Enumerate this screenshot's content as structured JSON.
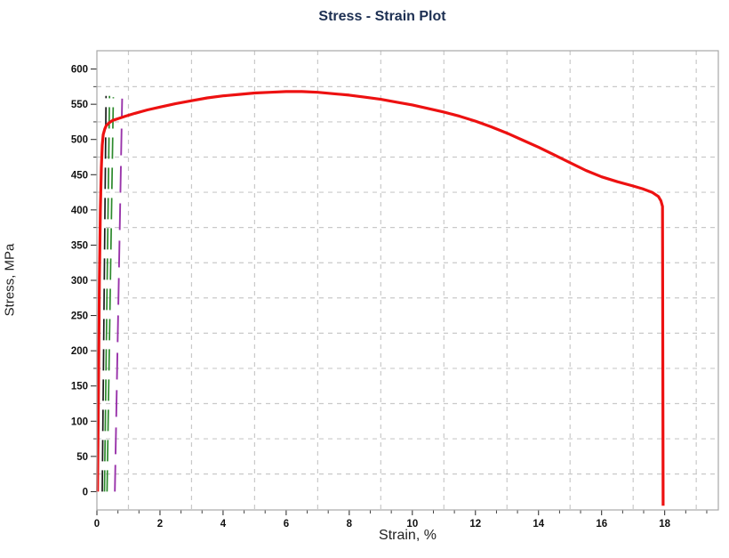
{
  "title": "Stress - Strain Plot",
  "chart_data": {
    "type": "line",
    "title": "Stress - Strain Plot",
    "xlabel": "Strain, %",
    "ylabel": "Stress, MPa",
    "xlim": [
      0,
      19.7
    ],
    "ylim": [
      -26,
      626
    ],
    "legend": "none",
    "grid_style": "dashed gridlines midway between labeled ticks",
    "x_ticks_major": [
      0,
      2,
      4,
      6,
      8,
      10,
      12,
      14,
      16,
      18
    ],
    "x_ticks_minor": [
      0.667,
      1.333,
      2.667,
      3.333,
      4.667,
      5.333,
      6.667,
      7.333,
      8.667,
      9.333,
      10.667,
      11.333,
      12.667,
      13.333,
      14.667,
      15.333,
      16.667,
      17.333,
      18.667,
      19.333
    ],
    "y_ticks_major": [
      0,
      50,
      100,
      150,
      200,
      250,
      300,
      350,
      400,
      450,
      500,
      550,
      600
    ],
    "y_ticks_minor": [
      25,
      75,
      125,
      175,
      225,
      275,
      325,
      375,
      425,
      475,
      525,
      575
    ],
    "x_gridlines": [
      1,
      3,
      5,
      7,
      9,
      11,
      13,
      15,
      17,
      19
    ],
    "y_gridlines": [
      25,
      75,
      125,
      175,
      225,
      275,
      325,
      375,
      425,
      475,
      525,
      575
    ],
    "colors": {
      "curve": "#ed1111",
      "modulus_line": "#1a1a1a",
      "offset_green": "#2c8a2c",
      "offset_purple": "#9933aa",
      "grid": "#c9c9c9",
      "border": "#a8a8a8",
      "title_text": "#1c2f52",
      "tick_text": "#111111"
    },
    "series": [
      {
        "name": "stress-strain curve",
        "color": "#ed1111",
        "style": "solid",
        "width": 3.2,
        "points": [
          [
            0.02,
            0
          ],
          [
            0.05,
            150
          ],
          [
            0.08,
            300
          ],
          [
            0.11,
            400
          ],
          [
            0.14,
            460
          ],
          [
            0.17,
            492
          ],
          [
            0.2,
            507
          ],
          [
            0.25,
            515
          ],
          [
            0.3,
            520
          ],
          [
            0.4,
            524
          ],
          [
            0.5,
            527
          ],
          [
            0.7,
            530
          ],
          [
            0.9,
            533
          ],
          [
            1.2,
            537
          ],
          [
            1.6,
            542
          ],
          [
            2,
            546
          ],
          [
            2.5,
            551
          ],
          [
            3,
            555
          ],
          [
            3.5,
            559
          ],
          [
            4,
            562
          ],
          [
            4.5,
            564
          ],
          [
            5,
            566
          ],
          [
            5.5,
            567
          ],
          [
            6,
            568
          ],
          [
            6.5,
            568
          ],
          [
            7,
            567
          ],
          [
            7.5,
            565
          ],
          [
            8,
            563
          ],
          [
            8.5,
            560
          ],
          [
            9,
            557
          ],
          [
            9.5,
            553
          ],
          [
            10,
            549
          ],
          [
            10.5,
            544
          ],
          [
            11,
            539
          ],
          [
            11.5,
            533
          ],
          [
            12,
            526
          ],
          [
            12.5,
            518
          ],
          [
            13,
            509
          ],
          [
            13.5,
            499
          ],
          [
            14,
            489
          ],
          [
            14.5,
            478
          ],
          [
            15,
            467
          ],
          [
            15.5,
            456
          ],
          [
            16,
            447
          ],
          [
            16.5,
            440
          ],
          [
            17,
            434
          ],
          [
            17.3,
            430
          ],
          [
            17.6,
            425
          ],
          [
            17.8,
            419
          ],
          [
            17.88,
            413
          ],
          [
            17.93,
            405
          ],
          [
            17.95,
            -20
          ]
        ]
      },
      {
        "name": "modulus line (black dashed)",
        "color": "#1a1a1a",
        "style": "dashed",
        "dash": "24 10",
        "width": 1.7,
        "points": [
          [
            0.17,
            0
          ],
          [
            0.29,
            562
          ]
        ]
      },
      {
        "name": "offset construction line green 1",
        "color": "#2c8a2c",
        "style": "dashed",
        "dash": "24 10",
        "width": 1.7,
        "points": [
          [
            0.24,
            0
          ],
          [
            0.4,
            562
          ]
        ]
      },
      {
        "name": "offset construction line green 2",
        "color": "#2c8a2c",
        "style": "dashed",
        "dash": "24 10",
        "width": 1.7,
        "points": [
          [
            0.32,
            0
          ],
          [
            0.52,
            560
          ]
        ]
      },
      {
        "name": "offset construction line purple",
        "color": "#9933aa",
        "style": "dashed",
        "dash": "30 12",
        "width": 1.9,
        "points": [
          [
            0.57,
            0
          ],
          [
            0.8,
            558
          ]
        ]
      }
    ]
  }
}
